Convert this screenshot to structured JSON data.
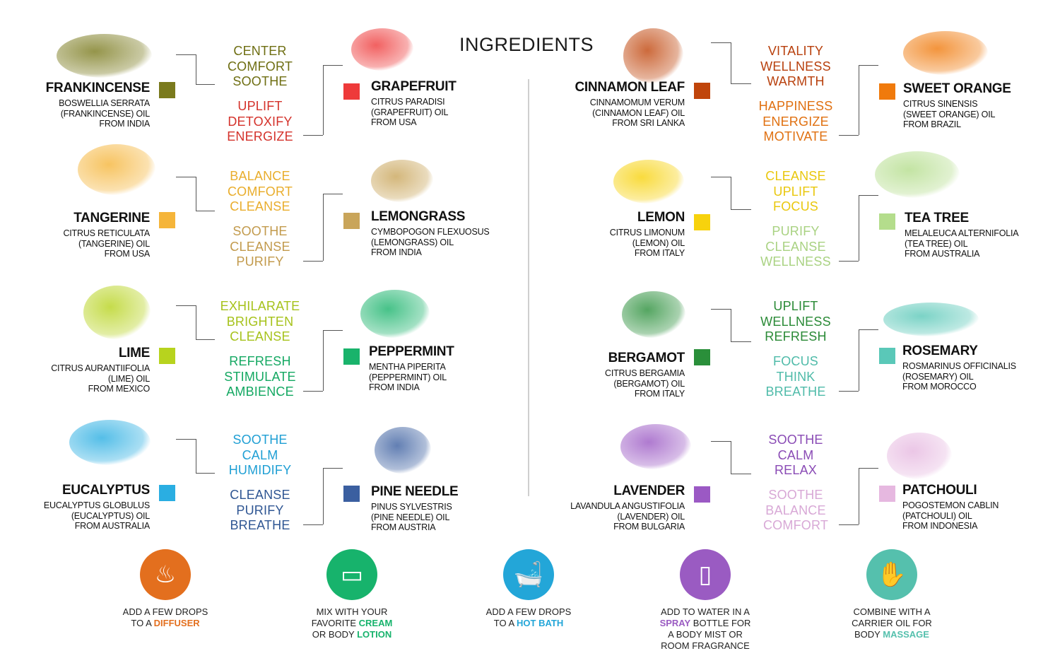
{
  "title": "INGREDIENTS",
  "oils": [
    {
      "name": "FRANKINCENSE",
      "latin": [
        "BOSWELLIA SERRATA",
        "(FRANKINCENSE) OIL",
        "FROM INDIA"
      ],
      "color": "#7a7a1d",
      "icon": "frankincense-resin-icon"
    },
    {
      "name": "GRAPEFRUIT",
      "latin": [
        "CITRUS PARADISI",
        "(GRAPEFRUIT) OIL",
        "FROM USA"
      ],
      "color": "#ee3a3a",
      "icon": "grapefruit-icon"
    },
    {
      "name": "TANGERINE",
      "latin": [
        "CITRUS RETICULATA",
        "(TANGERINE) OIL",
        "FROM USA"
      ],
      "color": "#f5b53a",
      "icon": "tangerine-icon"
    },
    {
      "name": "LEMONGRASS",
      "latin": [
        "CYMBOPOGON FLEXUOSUS",
        "(LEMONGRASS) OIL",
        "FROM INDIA"
      ],
      "color": "#c9a55a",
      "icon": "lemongrass-icon"
    },
    {
      "name": "LIME",
      "latin": [
        "CITRUS AURANTIIFOLIA",
        "(LIME) OIL",
        "FROM MEXICO"
      ],
      "color": "#b7d31e",
      "icon": "lime-icon"
    },
    {
      "name": "PEPPERMINT",
      "latin": [
        "MENTHA PIPERITA",
        "(PEPPERMINT) OIL",
        "FROM INDIA"
      ],
      "color": "#19b36b",
      "icon": "peppermint-icon"
    },
    {
      "name": "EUCALYPTUS",
      "latin": [
        "EUCALYPTUS GLOBULUS",
        "(EUCALYPTUS) OIL",
        "FROM AUSTRALIA"
      ],
      "color": "#2aaee2",
      "icon": "eucalyptus-icon"
    },
    {
      "name": "PINE NEEDLE",
      "latin": [
        "PINUS SYLVESTRIS",
        "(PINE NEEDLE) OIL",
        "FROM AUSTRIA"
      ],
      "color": "#3b5fa0",
      "icon": "pine-needle-icon"
    },
    {
      "name": "CINNAMON LEAF",
      "latin": [
        "CINNAMOMUM VERUM",
        "(CINNAMON LEAF) OIL",
        "FROM SRI LANKA"
      ],
      "color": "#c0450b",
      "icon": "cinnamon-leaf-icon"
    },
    {
      "name": "SWEET ORANGE",
      "latin": [
        "CITRUS SINENSIS",
        "(SWEET ORANGE) OIL",
        "FROM BRAZIL"
      ],
      "color": "#f07a0c",
      "icon": "sweet-orange-icon"
    },
    {
      "name": "LEMON",
      "latin": [
        "CITRUS LIMONUM",
        "(LEMON) OIL",
        "FROM ITALY"
      ],
      "color": "#f7d20d",
      "icon": "lemon-icon"
    },
    {
      "name": "TEA TREE",
      "latin": [
        "MELALEUCA ALTERNIFOLIA",
        "(TEA TREE) OIL",
        "FROM AUSTRALIA"
      ],
      "color": "#b4dd8c",
      "icon": "tea-tree-icon"
    },
    {
      "name": "BERGAMOT",
      "latin": [
        "CITRUS BERGAMIA",
        "(BERGAMOT) OIL",
        "FROM ITALY"
      ],
      "color": "#2a8f3a",
      "icon": "bergamot-icon"
    },
    {
      "name": "ROSEMARY",
      "latin": [
        "ROSMARINUS OFFICINALIS",
        "(ROSEMARY) OIL",
        "FROM MOROCCO"
      ],
      "color": "#5ac8b8",
      "icon": "rosemary-icon"
    },
    {
      "name": "LAVENDER",
      "latin": [
        "LAVANDULA ANGUSTIFOLIA",
        "(LAVENDER) OIL",
        "FROM BULGARIA"
      ],
      "color": "#9b59c4",
      "icon": "lavender-icon"
    },
    {
      "name": "PATCHOULI",
      "latin": [
        "POGOSTEMON CABLIN",
        "(PATCHOULI) OIL",
        "FROM INDONESIA"
      ],
      "color": "#e6b8e0",
      "icon": "patchouli-icon"
    }
  ],
  "benefits": [
    {
      "words": [
        "CENTER",
        "COMFORT",
        "SOOTHE"
      ],
      "color": "#6e6e12"
    },
    {
      "words": [
        "UPLIFT",
        "DETOXIFY",
        "ENERGIZE"
      ],
      "color": "#d4322b"
    },
    {
      "words": [
        "BALANCE",
        "COMFORT",
        "CLEANSE"
      ],
      "color": "#e9ad2c"
    },
    {
      "words": [
        "SOOTHE",
        "CLEANSE",
        "PURIFY"
      ],
      "color": "#c29a4c"
    },
    {
      "words": [
        "EXHILARATE",
        "BRIGHTEN",
        "CLEANSE"
      ],
      "color": "#a6c21b"
    },
    {
      "words": [
        "REFRESH",
        "STIMULATE",
        "AMBIENCE"
      ],
      "color": "#14a862"
    },
    {
      "words": [
        "SOOTHE",
        "CALM",
        "HUMIDIFY"
      ],
      "color": "#1f9fd4"
    },
    {
      "words": [
        "CLEANSE",
        "PURIFY",
        "BREATHE"
      ],
      "color": "#2f5693"
    },
    {
      "words": [
        "VITALITY",
        "WELLNESS",
        "WARMTH"
      ],
      "color": "#b8400d"
    },
    {
      "words": [
        "HAPPINESS",
        "ENERGIZE",
        "MOTIVATE"
      ],
      "color": "#e07010"
    },
    {
      "words": [
        "CLEANSE",
        "UPLIFT",
        "FOCUS"
      ],
      "color": "#e9c70d"
    },
    {
      "words": [
        "PURIFY",
        "CLEANSE",
        "WELLNESS"
      ],
      "color": "#a9d282"
    },
    {
      "words": [
        "UPLIFT",
        "WELLNESS",
        "REFRESH"
      ],
      "color": "#2a8a36"
    },
    {
      "words": [
        "FOCUS",
        "THINK",
        "BREATHE"
      ],
      "color": "#4fbba9"
    },
    {
      "words": [
        "SOOTHE",
        "CALM",
        "RELAX"
      ],
      "color": "#8a4bb5"
    },
    {
      "words": [
        "SOOTHE",
        "BALANCE",
        "COMFORT"
      ],
      "color": "#d8a8d6"
    }
  ],
  "uses": [
    {
      "icon": "diffuser-icon",
      "color": "#e36f1e",
      "lines": [
        [
          "ADD A FEW DROPS",
          ""
        ],
        [
          "TO A ",
          "DIFFUSER"
        ]
      ]
    },
    {
      "icon": "cream-lotion-icon",
      "color": "#17b36c",
      "lines": [
        [
          "MIX WITH YOUR",
          ""
        ],
        [
          "FAVORITE ",
          "CREAM"
        ],
        [
          "OR BODY ",
          "LOTION"
        ]
      ]
    },
    {
      "icon": "bathtub-icon",
      "color": "#23a6d8",
      "lines": [
        [
          "ADD A FEW DROPS",
          ""
        ],
        [
          "TO A ",
          "HOT BATH"
        ]
      ]
    },
    {
      "icon": "spray-bottle-icon",
      "color": "#9a5bc2",
      "lines": [
        [
          "ADD TO WATER IN A",
          ""
        ],
        [
          "",
          "SPRAY",
          " BOTTLE FOR"
        ],
        [
          "A BODY MIST OR",
          ""
        ],
        [
          "ROOM FRAGRANCE",
          ""
        ]
      ]
    },
    {
      "icon": "massage-icon",
      "color": "#55c0ad",
      "lines": [
        [
          "COMBINE WITH A",
          ""
        ],
        [
          "CARRIER OIL FOR",
          ""
        ],
        [
          "BODY ",
          "MASSAGE"
        ]
      ]
    }
  ]
}
